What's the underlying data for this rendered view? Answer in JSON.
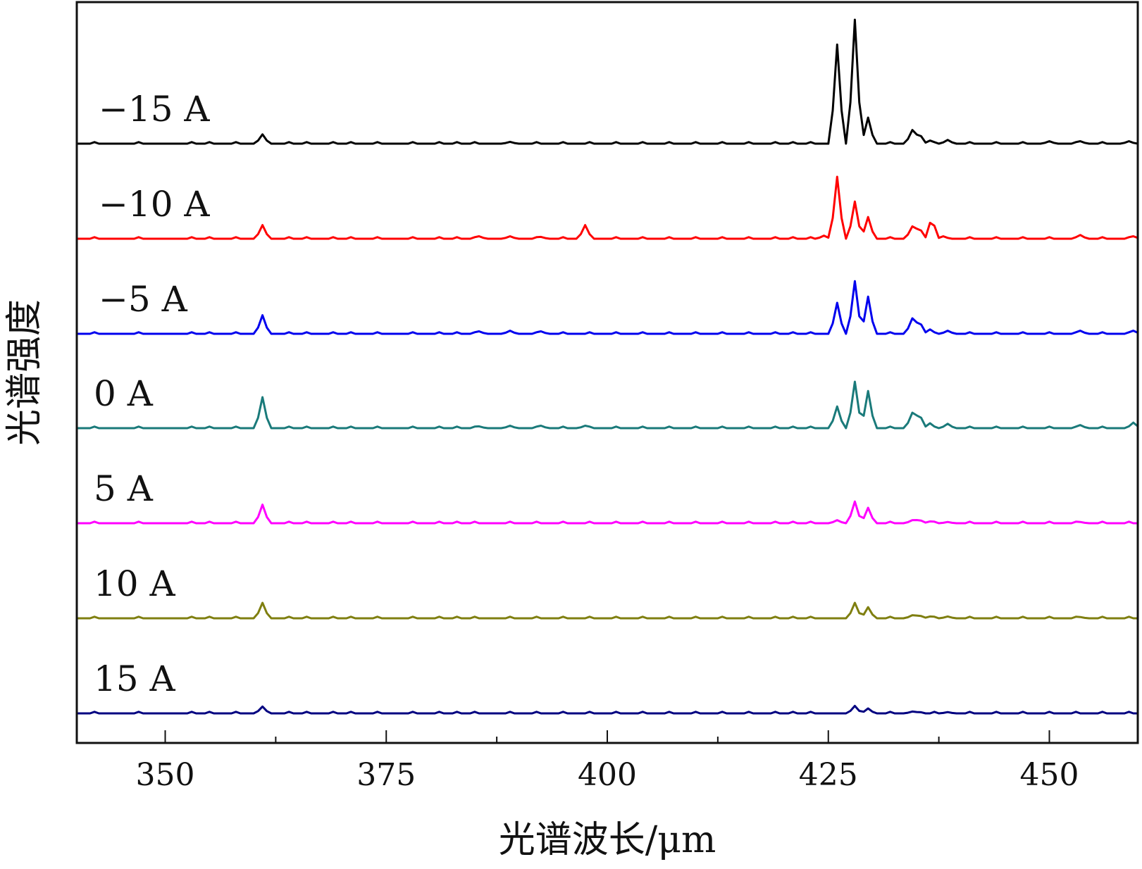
{
  "chart_data": {
    "type": "line",
    "xlabel": "光谱波长/μm",
    "ylabel": "光谱强度",
    "xlim": [
      340,
      460
    ],
    "x_ticks": [
      350,
      375,
      400,
      425,
      450
    ],
    "x_minor_ticks": [
      362.5,
      387.5,
      412.5,
      437.5
    ],
    "y_ticks_shown": false,
    "grid": false,
    "legend": "inline-labels",
    "stacked_offset": true,
    "baseline_noise_positions": [
      342,
      347,
      353,
      355,
      358,
      364,
      366,
      369,
      371,
      374,
      378,
      381,
      383,
      385,
      389,
      392,
      395,
      398,
      401,
      404,
      407,
      410,
      413,
      416,
      419,
      421,
      423,
      432,
      437,
      441,
      444,
      447,
      450,
      453,
      456,
      459
    ],
    "series": [
      {
        "name": "−15 A",
        "color": "#000000",
        "peaks": [
          [
            361,
            0.15
          ],
          [
            389,
            0.03
          ],
          [
            426,
            1.6
          ],
          [
            428,
            2.0
          ],
          [
            429.5,
            0.42
          ],
          [
            434.5,
            0.22
          ],
          [
            435.2,
            0.2
          ],
          [
            436.5,
            0.05
          ],
          [
            438.5,
            0.06
          ],
          [
            450,
            0.04
          ],
          [
            453.5,
            0.04
          ],
          [
            459,
            0.04
          ]
        ]
      },
      {
        "name": "−10 A",
        "color": "#ff0000",
        "peaks": [
          [
            361,
            0.22
          ],
          [
            385.5,
            0.04
          ],
          [
            389,
            0.04
          ],
          [
            392.5,
            0.03
          ],
          [
            397.5,
            0.22
          ],
          [
            424.5,
            0.05
          ],
          [
            426,
            1.0
          ],
          [
            428,
            0.6
          ],
          [
            429.5,
            0.35
          ],
          [
            434.5,
            0.2
          ],
          [
            435.2,
            0.22
          ],
          [
            436.7,
            0.35
          ],
          [
            438,
            0.04
          ],
          [
            453.5,
            0.06
          ],
          [
            459.5,
            0.04
          ]
        ]
      },
      {
        "name": "−5 A",
        "color": "#0000ee",
        "peaks": [
          [
            361,
            0.3
          ],
          [
            385.5,
            0.04
          ],
          [
            389,
            0.05
          ],
          [
            392.5,
            0.04
          ],
          [
            426,
            0.5
          ],
          [
            428,
            0.85
          ],
          [
            429.5,
            0.6
          ],
          [
            434.5,
            0.25
          ],
          [
            435.2,
            0.25
          ],
          [
            436.5,
            0.07
          ],
          [
            438.5,
            0.05
          ],
          [
            453.5,
            0.05
          ],
          [
            459.5,
            0.05
          ]
        ]
      },
      {
        "name": "0 A",
        "color": "#1a7a7a",
        "peaks": [
          [
            361,
            0.5
          ],
          [
            385.5,
            0.03
          ],
          [
            389,
            0.04
          ],
          [
            392.5,
            0.04
          ],
          [
            397.5,
            0.04
          ],
          [
            426,
            0.35
          ],
          [
            428,
            0.75
          ],
          [
            429.5,
            0.6
          ],
          [
            434.5,
            0.25
          ],
          [
            435.2,
            0.28
          ],
          [
            436.5,
            0.08
          ],
          [
            438.5,
            0.07
          ],
          [
            453.5,
            0.05
          ],
          [
            459.5,
            0.09
          ]
        ]
      },
      {
        "name": "5 A",
        "color": "#ff00ff",
        "peaks": [
          [
            361,
            0.3
          ],
          [
            426,
            0.05
          ],
          [
            428,
            0.35
          ],
          [
            429.5,
            0.25
          ],
          [
            434.5,
            0.05
          ],
          [
            435.2,
            0.07
          ],
          [
            436.5,
            0.03
          ],
          [
            438.5,
            0.02
          ],
          [
            453.5,
            0.02
          ]
        ]
      },
      {
        "name": "10 A",
        "color": "#7f7f10",
        "peaks": [
          [
            361,
            0.25
          ],
          [
            428,
            0.25
          ],
          [
            429.5,
            0.18
          ],
          [
            434.5,
            0.05
          ],
          [
            435.2,
            0.06
          ],
          [
            436.5,
            0.03
          ],
          [
            438.5,
            0.03
          ],
          [
            453.5,
            0.02
          ]
        ]
      },
      {
        "name": "15 A",
        "color": "#000080",
        "peaks": [
          [
            361,
            0.11
          ],
          [
            428,
            0.12
          ],
          [
            429.5,
            0.08
          ],
          [
            434.5,
            0.03
          ],
          [
            435.2,
            0.03
          ],
          [
            438.5,
            0.02
          ]
        ]
      }
    ]
  }
}
